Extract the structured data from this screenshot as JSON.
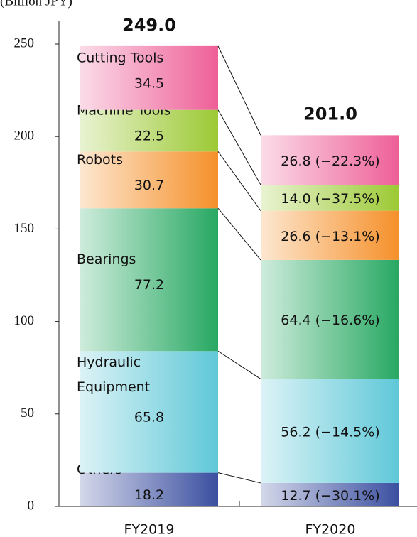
{
  "chart_data": {
    "type": "stacked_bar",
    "y_axis_label": "(Billion JPY)",
    "categories": [
      "FY2019",
      "FY2020"
    ],
    "totals": [
      249.0,
      201.0
    ],
    "total_labels": [
      "249.0",
      "201.0"
    ],
    "series": [
      {
        "name": "Others",
        "color": "#3b4fa0",
        "values": [
          18.2,
          12.7
        ],
        "value_labels": [
          "18.2",
          "12.7 (−30.1%)"
        ]
      },
      {
        "name": "Hydraulic Equipment",
        "color": "#5fc8d8",
        "values": [
          65.8,
          56.2
        ],
        "value_labels": [
          "65.8",
          "56.2 (−14.5%)"
        ]
      },
      {
        "name": "Bearings",
        "color": "#27a862",
        "values": [
          77.2,
          64.4
        ],
        "value_labels": [
          "77.2",
          "64.4 (−16.6%)"
        ]
      },
      {
        "name": "Robots",
        "color": "#f5902a",
        "values": [
          30.7,
          26.6
        ],
        "value_labels": [
          "30.7",
          "26.6 (−13.1%)"
        ]
      },
      {
        "name": "Machine Tools",
        "color": "#9cc934",
        "values": [
          22.5,
          14.0
        ],
        "value_labels": [
          "22.5",
          "14.0 (−37.5%)"
        ]
      },
      {
        "name": "Cutting Tools",
        "color": "#ee5f97",
        "values": [
          34.5,
          26.8
        ],
        "value_labels": [
          "34.5",
          "26.8 (−22.3%)"
        ]
      }
    ],
    "ylim": [
      0,
      250
    ],
    "yticks": [
      0,
      50,
      100,
      150,
      200,
      250
    ]
  }
}
